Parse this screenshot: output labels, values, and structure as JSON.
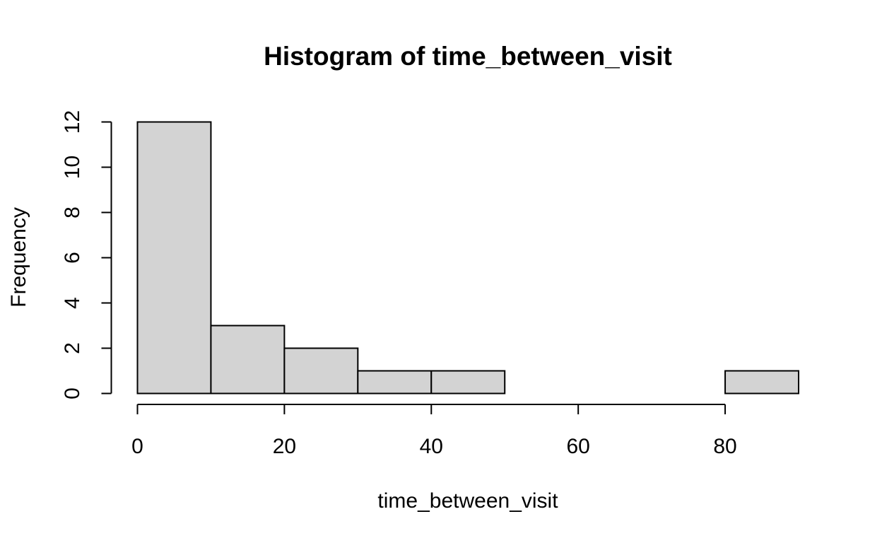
{
  "chart_data": {
    "type": "bar",
    "title": "Histogram of time_between_visit",
    "xlabel": "time_between_visit",
    "ylabel": "Frequency",
    "bin_edges": [
      0,
      10,
      20,
      30,
      40,
      50,
      60,
      70,
      80,
      90
    ],
    "values": [
      12,
      3,
      2,
      1,
      1,
      0,
      0,
      0,
      1
    ],
    "x_ticks": [
      0,
      20,
      40,
      60,
      80
    ],
    "y_ticks": [
      0,
      2,
      4,
      6,
      8,
      10,
      12
    ],
    "xlim": [
      0,
      90
    ],
    "ylim": [
      0,
      12
    ],
    "grid": false,
    "bar_fill": "#d3d3d3",
    "bar_stroke": "#000000"
  }
}
